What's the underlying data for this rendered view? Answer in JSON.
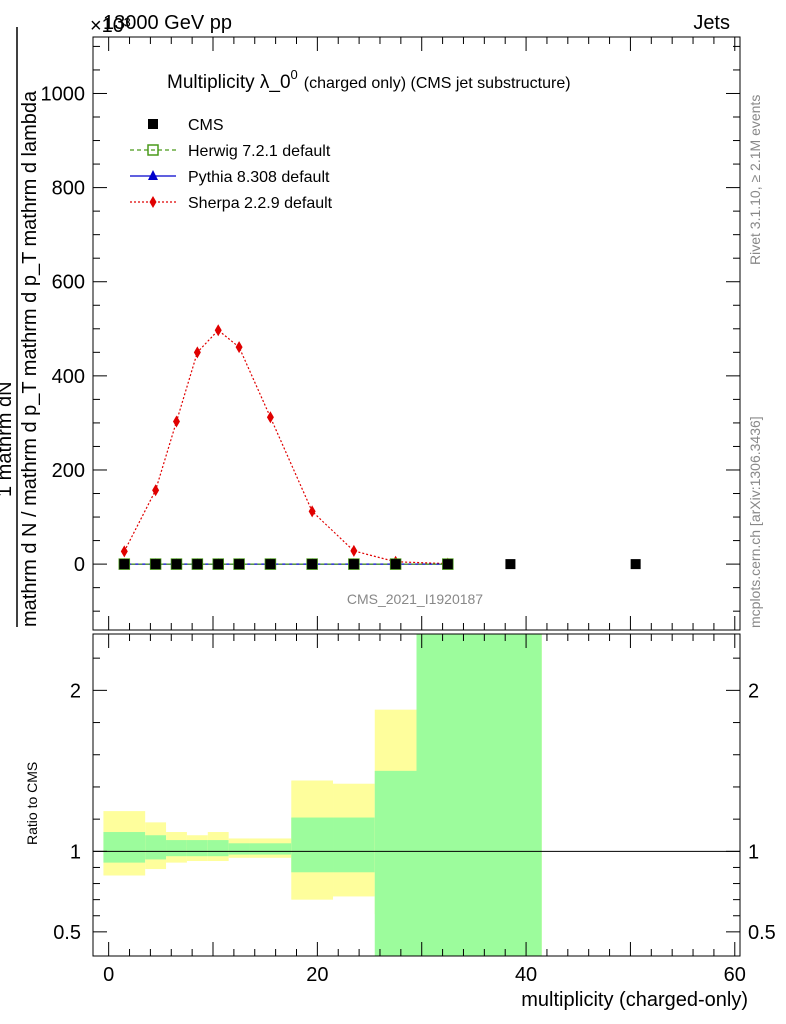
{
  "header": {
    "left": "13000 GeV pp",
    "right": "Jets",
    "exponent": "×10³"
  },
  "side_labels": {
    "rivet": "Rivet 3.1.10, ≥ 2.1M events",
    "mcplots": "mcplots.cern.ch [arXiv:1306.3436]"
  },
  "watermark": "CMS_2021_I1920187",
  "chart_data": [
    {
      "type": "scatter",
      "panel": "main",
      "title": "Multiplicity λ_0⁰",
      "title_main": "Multiplicity λ_0",
      "title_sup": "0",
      "title_suffix": "(charged only) (CMS jet substructure)",
      "ylabel_num": "1        mathrm dN",
      "ylabel_den": "mathrm d N / mathrm d p_T mathrm d p_T mathrm d lambda",
      "ylim": [
        -140,
        1120
      ],
      "yticks": [
        0,
        200,
        400,
        600,
        800,
        1000
      ],
      "ytick_labels": [
        "0",
        "200",
        "400",
        "600",
        "800",
        "1000"
      ],
      "xlim": [
        -1.5,
        60.5
      ],
      "series": [
        {
          "name": "CMS",
          "color": "#000000",
          "marker": "square",
          "x": [
            1.5,
            4.5,
            6.5,
            8.5,
            10.5,
            12.5,
            15.5,
            19.5,
            23.5,
            27.5,
            32.5,
            38.5,
            50.5
          ],
          "y": [
            0,
            0,
            0,
            0,
            0,
            0,
            0,
            0,
            0,
            0,
            0,
            0,
            0
          ]
        },
        {
          "name": "Herwig 7.2.1 default",
          "color": "#4a9a1a",
          "marker": "open-square",
          "line": "dashed",
          "x": [
            1.5,
            4.5,
            6.5,
            8.5,
            10.5,
            12.5,
            15.5,
            19.5,
            23.5,
            27.5,
            32.5
          ],
          "y": [
            0,
            0,
            0,
            0,
            0,
            0,
            0,
            0,
            0,
            0,
            0
          ]
        },
        {
          "name": "Pythia 8.308 default",
          "color": "#0000cc",
          "marker": "triangle",
          "line": "solid",
          "x": [
            1.5,
            4.5,
            6.5,
            8.5,
            10.5,
            12.5,
            15.5,
            19.5,
            23.5,
            27.5,
            32.5
          ],
          "y": [
            0,
            0,
            0,
            0,
            0,
            0,
            0,
            0,
            0,
            0,
            0
          ]
        },
        {
          "name": "Sherpa 2.2.9 default",
          "color": "#e00000",
          "marker": "diamond",
          "line": "dotted",
          "x": [
            1.5,
            4.5,
            6.5,
            8.5,
            10.5,
            12.5,
            15.5,
            19.5,
            23.5,
            27.5,
            32.5
          ],
          "y": [
            27,
            157,
            303,
            450,
            497,
            461,
            312,
            112,
            28,
            5,
            1
          ]
        }
      ]
    },
    {
      "type": "area",
      "panel": "ratio",
      "ylabel": "Ratio to CMS",
      "xlabel": "multiplicity (charged-only)",
      "ylim": [
        0.35,
        2.35
      ],
      "yticks": [
        0.5,
        1,
        2
      ],
      "ytick_labels": [
        "0.5",
        "1",
        "2"
      ],
      "xlim": [
        -1.5,
        60.5
      ],
      "xticks": [
        0,
        20,
        40,
        60
      ],
      "xtick_labels": [
        "0",
        "20",
        "40",
        "60"
      ],
      "reference_line": 1,
      "bands": {
        "bin_edges": [
          -0.5,
          3.5,
          5.5,
          7.5,
          9.5,
          11.5,
          13.5,
          17.5,
          21.5,
          25.5,
          29.5,
          41.5
        ],
        "inner_color": "#9cfc9c",
        "outer_color": "#fefe9c",
        "inner_lo": [
          0.93,
          0.95,
          0.97,
          0.97,
          0.97,
          0.98,
          0.98,
          0.87,
          0.87,
          0.35,
          0.35
        ],
        "inner_hi": [
          1.12,
          1.1,
          1.07,
          1.07,
          1.07,
          1.05,
          1.05,
          1.21,
          1.21,
          1.5,
          2.35
        ],
        "outer_lo": [
          0.85,
          0.89,
          0.93,
          0.94,
          0.94,
          0.96,
          0.96,
          0.7,
          0.72,
          0.61,
          0.35
        ],
        "outer_hi": [
          1.25,
          1.18,
          1.12,
          1.1,
          1.12,
          1.08,
          1.08,
          1.44,
          1.42,
          1.88,
          2.35
        ]
      }
    }
  ]
}
